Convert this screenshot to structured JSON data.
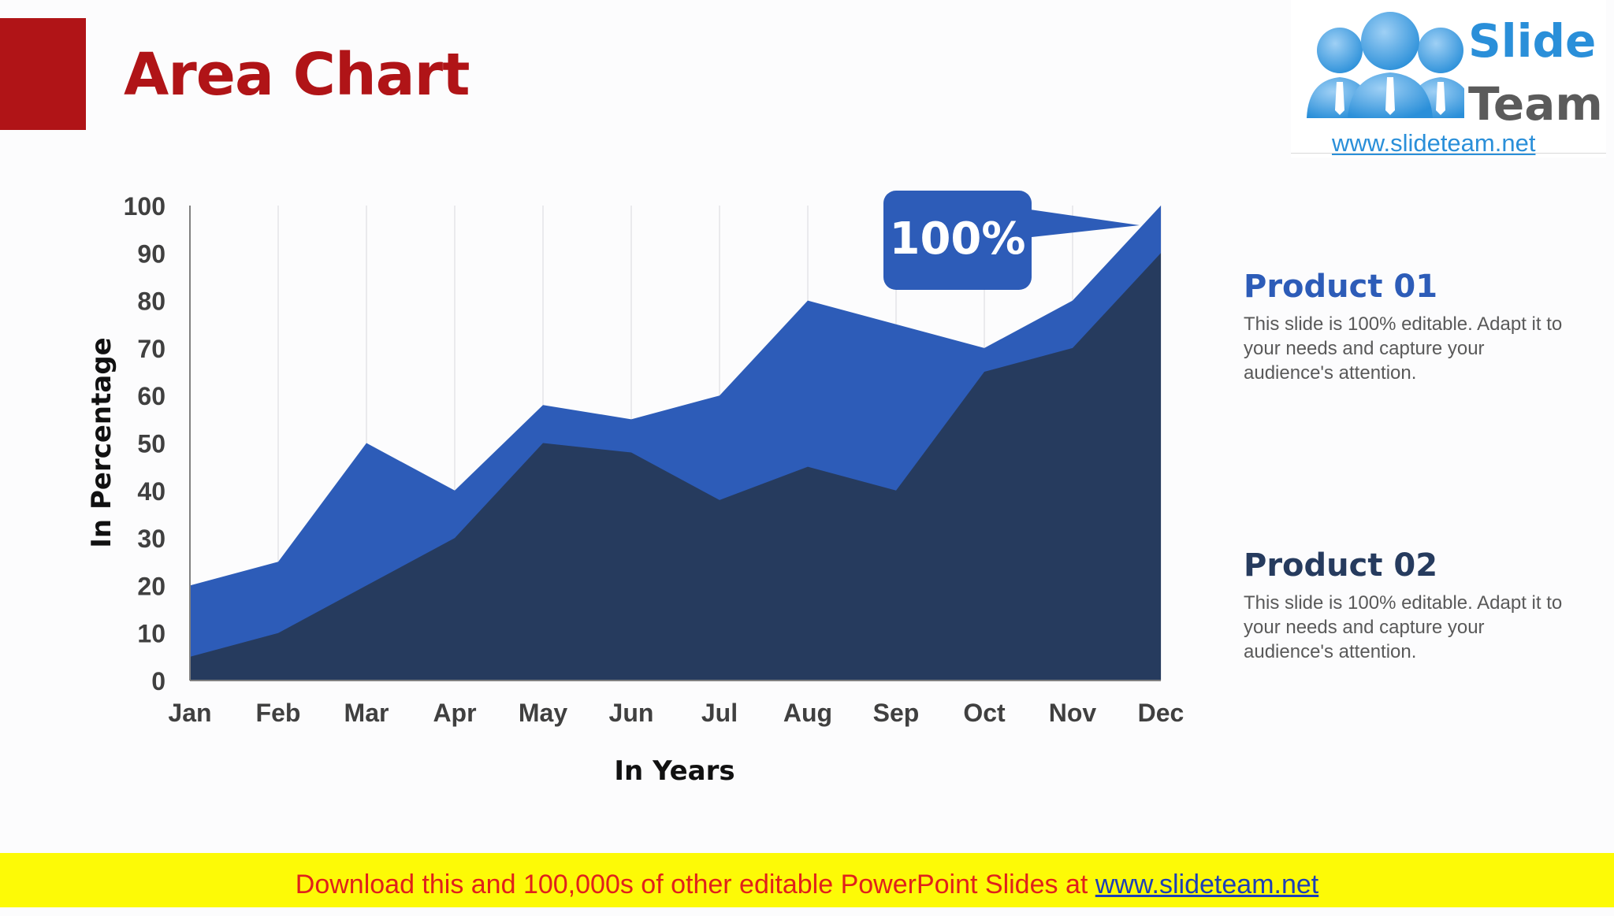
{
  "slide": {
    "title": "Area Chart"
  },
  "logo": {
    "word1": "Slide",
    "word2": "Team",
    "url": "www.slideteam.net"
  },
  "callout": {
    "text": "100%"
  },
  "products": [
    {
      "title": "Product 01",
      "description": "This slide is 100% editable. Adapt it to your needs and capture your audience's attention."
    },
    {
      "title": "Product 02",
      "description": "This slide is 100% editable. Adapt it to your needs and capture your audience's attention."
    }
  ],
  "footer": {
    "text": "Download this and 100,000s of other editable PowerPoint Slides at ",
    "link": "www.slideteam.net"
  },
  "colors": {
    "title": "#b01417",
    "product01": "#2d5cb8",
    "product02": "#263b5e",
    "footer_bg": "#fdfa06",
    "footer_text": "#e0211b"
  },
  "chart_data": {
    "type": "area",
    "categories": [
      "Jan",
      "Feb",
      "Mar",
      "Apr",
      "May",
      "Jun",
      "Jul",
      "Aug",
      "Sep",
      "Oct",
      "Nov",
      "Dec"
    ],
    "series": [
      {
        "name": "Product 01",
        "color": "#2d5cb8",
        "values": [
          20,
          25,
          50,
          40,
          58,
          55,
          60,
          80,
          75,
          70,
          80,
          100
        ]
      },
      {
        "name": "Product 02",
        "color": "#263b5e",
        "values": [
          5,
          10,
          20,
          30,
          50,
          48,
          38,
          45,
          40,
          65,
          70,
          90
        ]
      }
    ],
    "yticks": [
      0,
      10,
      20,
      30,
      40,
      50,
      60,
      70,
      80,
      90,
      100
    ],
    "ylim": [
      0,
      100
    ],
    "xlabel": "In Years",
    "ylabel": "In Percentage",
    "grid": "vertical",
    "legend": "right"
  }
}
